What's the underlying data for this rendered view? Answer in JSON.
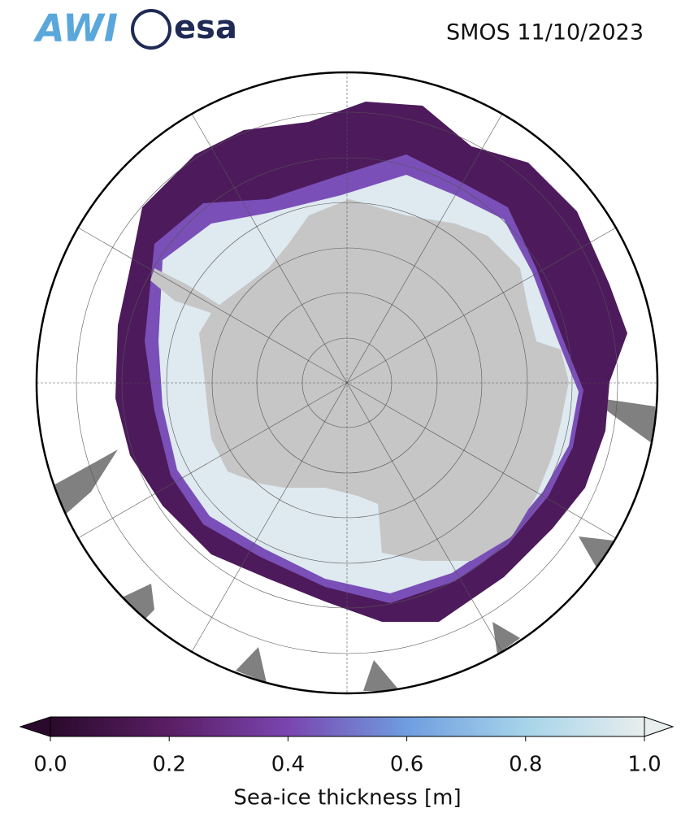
{
  "header": {
    "logos": [
      "AWI",
      "esa"
    ],
    "title": "SMOS 11/10/2023"
  },
  "colorbar": {
    "label": "Sea-ice thickness [m]",
    "lim": [
      0,
      1
    ],
    "ticks": [
      {
        "value": 0,
        "label": "0.0"
      },
      {
        "value": 0.2,
        "label": "0.2"
      },
      {
        "value": 0.4,
        "label": "0.4"
      },
      {
        "value": 0.6,
        "label": "0.6"
      },
      {
        "value": 0.8,
        "label": "0.8"
      },
      {
        "value": 1,
        "label": "1.0"
      }
    ],
    "colors": [
      "#2a0a2c",
      "#5a1e64",
      "#7a45b0",
      "#6f9de0",
      "#a6d4ea",
      "#e8eeee"
    ],
    "extend": "both"
  }
}
